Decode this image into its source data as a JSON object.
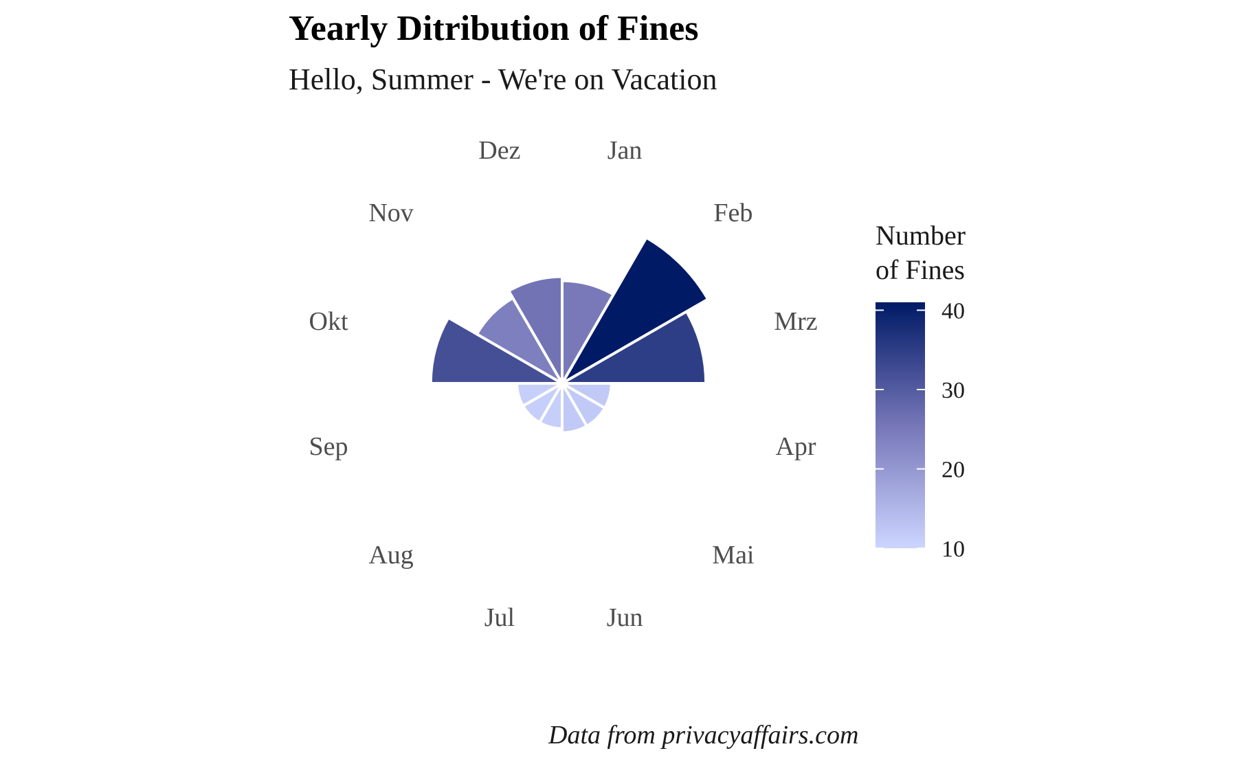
{
  "chart_data": {
    "type": "polar-bar",
    "title": "Yearly Ditribution of Fines",
    "subtitle": "Hello, Summer - We're on Vacation",
    "caption": "Data from privacyaffairs.com",
    "categories": [
      "Jan",
      "Feb",
      "Mrz",
      "Apr",
      "Mai",
      "Jun",
      "Jul",
      "Aug",
      "Sep",
      "Okt",
      "Nov",
      "Dez"
    ],
    "values": [
      25,
      41,
      35,
      12,
      12,
      12,
      11,
      11,
      11,
      32,
      24,
      26
    ],
    "legend": {
      "title_lines": [
        "Number",
        "of Fines"
      ],
      "ticks": [
        10,
        20,
        30,
        40
      ],
      "range": [
        10,
        41
      ],
      "color_low": "#ccd5ff",
      "color_high": "#001a66"
    },
    "bar_outline_color": "#ffffff",
    "label_color": "#4d4d4d"
  }
}
